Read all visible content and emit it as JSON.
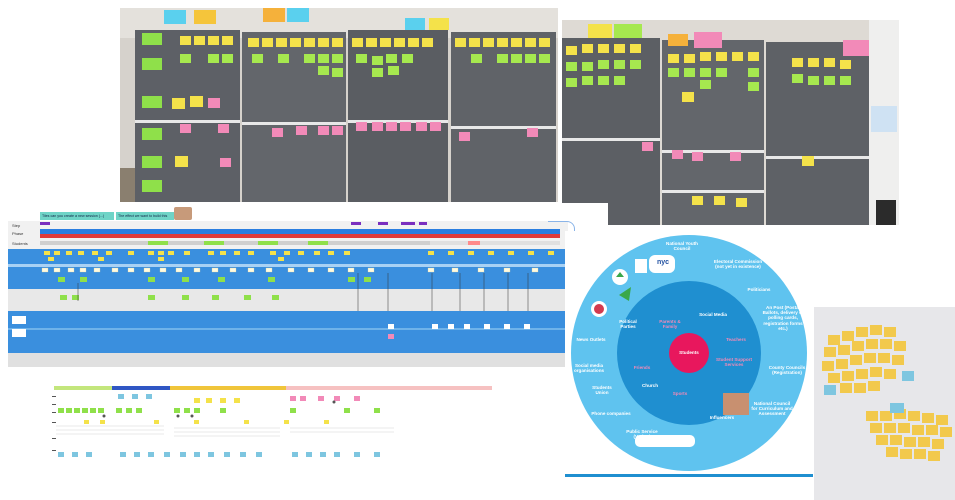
{
  "wall_photo": {
    "description_colors": {
      "board": "#5b5e63",
      "wall": "#d7d4cf",
      "yellow": "#f4e24a",
      "green": "#8fe04a",
      "pink": "#f28ab8",
      "blue": "#5ad0ee",
      "orange": "#f5b13b"
    }
  },
  "miro_board": {
    "top_notes": [
      "Tiles can you create a new session (...)",
      "The effect we want to build this"
    ],
    "row_labels": [
      "Step",
      "Phase",
      "Students",
      "Touchpoints",
      "Actions",
      "Feelings",
      "Roles",
      "Notes"
    ]
  },
  "circle_map": {
    "colors": {
      "outer": "#5fc3ef",
      "middle": "#1f8fd0",
      "inner": "#e8175d"
    },
    "center_label": "Students",
    "inner_labels": [
      "Social Media",
      "Parents & Family",
      "Teachers",
      "Friends",
      "Church",
      "Sports",
      "Student Support Services"
    ],
    "outer_labels": [
      "National Youth Council",
      "Electoral Commission (not yet in existence)",
      "Politicians",
      "An Post (Postal Ballots, delivery of polling cards, registration forms etc.)",
      "County Councils (Registration)",
      "National Council for Curriculum and Assessment",
      "Influencers",
      "Public Service (Voting)",
      "Phone companies",
      "Students Union",
      "Social media organisations",
      "News Outlets",
      "Political Parties"
    ],
    "logo_text": "nyc"
  },
  "sticky_photo": {
    "colors": {
      "yellow": "#f2c94c",
      "blue": "#7ec6e0",
      "wall": "#e9e9ec"
    }
  }
}
